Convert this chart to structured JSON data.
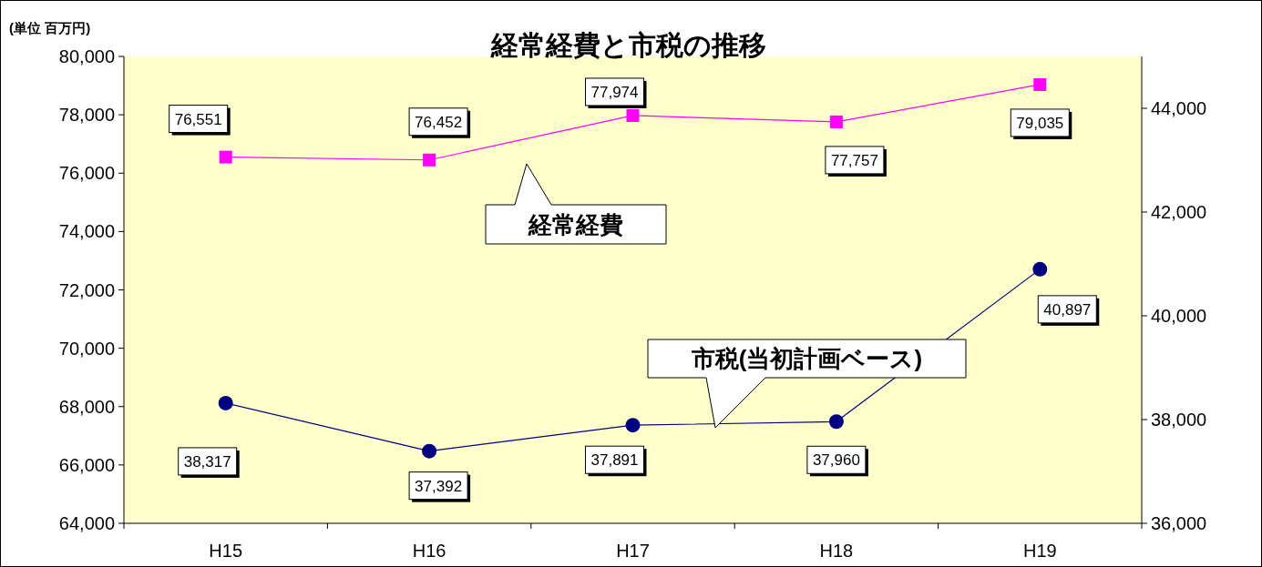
{
  "chart_data": {
    "type": "line",
    "title": "経常経費と市税の推移",
    "ylabel": "(単位 百万円)",
    "categories": [
      "H15",
      "H16",
      "H17",
      "H18",
      "H19"
    ],
    "series": [
      {
        "name": "経常経費",
        "color": "#ff00ff",
        "marker": "square",
        "values": [
          76551,
          76452,
          77974,
          77757,
          79035
        ],
        "value_labels": [
          "76,551",
          "76,452",
          "77,974",
          "77,757",
          "79,035"
        ]
      },
      {
        "name": "市税(当初計画ベース)",
        "color": "#000080",
        "marker": "circle",
        "axis": "y2",
        "values": [
          38317,
          37392,
          37891,
          37960,
          40897
        ],
        "value_labels": [
          "38,317",
          "37,392",
          "37,891",
          "37,960",
          "40,897"
        ]
      }
    ],
    "ylim": [
      64000,
      80000
    ],
    "yticks": [
      {
        "value": 64000,
        "label": "64,000"
      },
      {
        "value": 66000,
        "label": "66,000"
      },
      {
        "value": 68000,
        "label": "68,000"
      },
      {
        "value": 70000,
        "label": "70,000"
      },
      {
        "value": 72000,
        "label": "72,000"
      },
      {
        "value": 74000,
        "label": "74,000"
      },
      {
        "value": 76000,
        "label": "76,000"
      },
      {
        "value": 78000,
        "label": "78,000"
      },
      {
        "value": 80000,
        "label": "80,000"
      }
    ],
    "y2lim": [
      36000,
      45000
    ],
    "y2ticks": [
      {
        "value": 36000,
        "label": "36,000"
      },
      {
        "value": 38000,
        "label": "38,000"
      },
      {
        "value": 40000,
        "label": "40,000"
      },
      {
        "value": 42000,
        "label": "42,000"
      },
      {
        "value": 44000,
        "label": "44,000"
      }
    ],
    "grid": false
  }
}
